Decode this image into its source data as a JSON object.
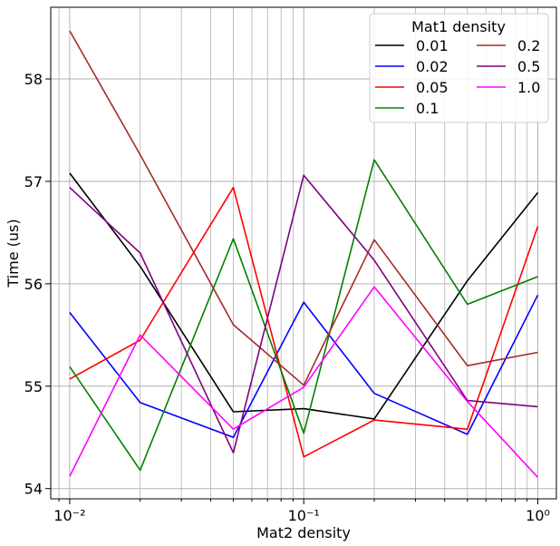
{
  "chart_data": {
    "type": "line",
    "xlabel": "Mat2 density",
    "ylabel": "Time (us)",
    "xscale": "log",
    "x": [
      0.01,
      0.02,
      0.05,
      0.1,
      0.2,
      0.5,
      1.0
    ],
    "xlim": [
      0.0083,
      1.2
    ],
    "ylim": [
      53.9,
      58.7
    ],
    "yticks": [
      54,
      55,
      56,
      57,
      58
    ],
    "xticks": [
      {
        "value": 0.01,
        "label": "10⁻²"
      },
      {
        "value": 0.1,
        "label": "10⁻¹"
      },
      {
        "value": 1.0,
        "label": "10⁰"
      }
    ],
    "grid": true,
    "legend": {
      "title": "Mat1 density",
      "placement": "top-right",
      "columns": 2
    },
    "series": [
      {
        "name": "0.01",
        "color": "#000000",
        "values": [
          57.08,
          56.17,
          54.75,
          54.78,
          54.68,
          56.03,
          56.89
        ]
      },
      {
        "name": "0.02",
        "color": "#0000ff",
        "values": [
          55.72,
          54.84,
          54.5,
          55.82,
          54.93,
          54.53,
          55.89
        ]
      },
      {
        "name": "0.05",
        "color": "#ff0000",
        "values": [
          55.07,
          55.45,
          56.94,
          54.31,
          54.67,
          54.58,
          56.56
        ]
      },
      {
        "name": "0.1",
        "color": "#008000",
        "values": [
          55.19,
          54.18,
          56.44,
          54.54,
          57.21,
          55.8,
          56.07
        ]
      },
      {
        "name": "0.2",
        "color": "#a52a2a",
        "values": [
          58.47,
          57.26,
          55.6,
          55.01,
          56.43,
          55.2,
          55.33
        ]
      },
      {
        "name": "0.5",
        "color": "#800080",
        "values": [
          56.94,
          56.3,
          54.35,
          57.06,
          56.23,
          54.86,
          54.8
        ]
      },
      {
        "name": "1.0",
        "color": "#ff00ff",
        "values": [
          54.12,
          55.5,
          54.58,
          54.99,
          55.97,
          54.85,
          54.11
        ]
      }
    ]
  }
}
